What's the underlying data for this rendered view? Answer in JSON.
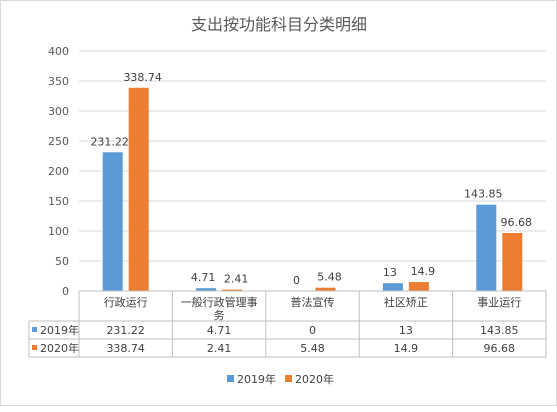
{
  "chart_data": {
    "type": "bar",
    "title": "支出按功能科目分类明细",
    "categories": [
      "行政运行",
      "一般行政管理事务",
      "普法宣传",
      "社区矫正",
      "事业运行"
    ],
    "series": [
      {
        "name": "2019年",
        "values": [
          231.22,
          4.71,
          0,
          13,
          143.85
        ],
        "labels": [
          "231.22",
          "4.71",
          "0",
          "13",
          "143.85"
        ]
      },
      {
        "name": "2020年",
        "values": [
          338.74,
          2.41,
          5.48,
          14.9,
          96.68
        ],
        "labels": [
          "338.74",
          "2.41",
          "5.48",
          "14.9",
          "96.68"
        ]
      }
    ],
    "yticks": [
      "0",
      "50",
      "100",
      "150",
      "200",
      "250",
      "300",
      "350",
      "400"
    ],
    "ylim": [
      0,
      400
    ],
    "grid": true,
    "data_table": true,
    "legend": "bottom",
    "colors": [
      "#5b9bd5",
      "#ed7d31"
    ]
  }
}
